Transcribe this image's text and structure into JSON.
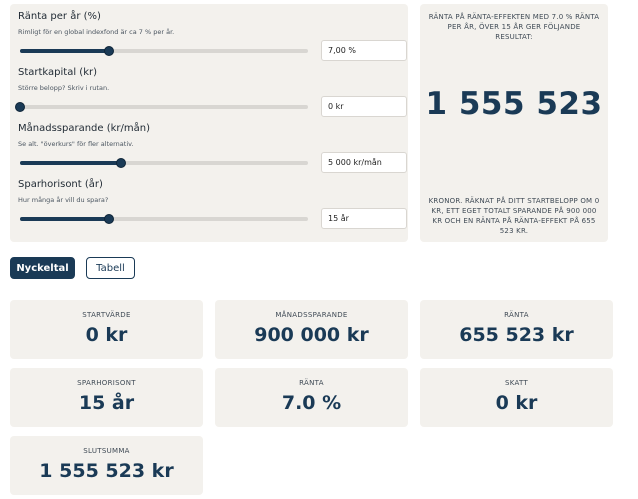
{
  "inputs": [
    {
      "label": "Ränta per år (%)",
      "hint": "Rimligt för en global indexfond är ca 7 % per år.",
      "value": "7,00 %",
      "slider_fraction": 0.31
    },
    {
      "label": "Startkapital (kr)",
      "hint": "Större belopp? Skriv i rutan.",
      "value": "0 kr",
      "slider_fraction": 0.0
    },
    {
      "label": "Månadssparande (kr/mån)",
      "hint": "Se alt. \"överkurs\" för fler alternativ.",
      "value": "5 000 kr/mån",
      "slider_fraction": 0.35
    },
    {
      "label": "Sparhorisont (år)",
      "hint": "Hur många år vill du spara?",
      "value": "15 år",
      "slider_fraction": 0.31
    }
  ],
  "result": {
    "top_text": "Ränta på ränta-effekten med 7.0 % ränta per år, över 15 år ger följande resultat:",
    "big_value": "1 555 523",
    "bottom_text": "Kronor. Räknat på ditt startbelopp om 0 kr, ett eget totalt sparande på 900 000 kr och en ränta på ränta-effekt på 655 523 kr."
  },
  "tabs": [
    {
      "label": "Nyckeltal",
      "active": true
    },
    {
      "label": "Tabell",
      "active": false
    }
  ],
  "cards": [
    {
      "label": "Startvärde",
      "value": "0 kr"
    },
    {
      "label": "Månadssparande",
      "value": "900 000 kr"
    },
    {
      "label": "Ränta",
      "value": "655 523 kr"
    },
    {
      "label": "Sparhorisont",
      "value": "15 år"
    },
    {
      "label": "Ränta",
      "value": "7.0 %"
    },
    {
      "label": "Skatt",
      "value": "0 kr"
    },
    {
      "label": "Slutsumma",
      "value": "1 555 523 kr"
    }
  ],
  "colors": {
    "accent": "#1a3a56",
    "panel_bg": "#f3f1ed",
    "track": "#d8d6d2"
  }
}
